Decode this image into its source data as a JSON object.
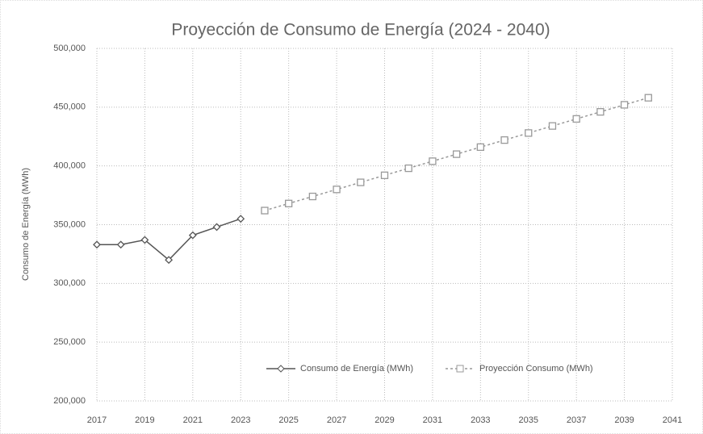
{
  "chart_data": {
    "type": "line",
    "title": "Proyección de Consumo de Energía (2024 - 2040)",
    "y_label": "Consumo de Energía (MWh)",
    "x": [
      2017,
      2018,
      2019,
      2020,
      2021,
      2022,
      2023,
      2024,
      2025,
      2026,
      2027,
      2028,
      2029,
      2030,
      2031,
      2032,
      2033,
      2034,
      2035,
      2036,
      2037,
      2038,
      2039,
      2040
    ],
    "series": [
      {
        "name": "Consumo de Energía (MWh)",
        "color": "#555555",
        "marker": "diamond",
        "values": [
          333000,
          333000,
          337000,
          320000,
          341000,
          348000,
          355000,
          null,
          null,
          null,
          null,
          null,
          null,
          null,
          null,
          null,
          null,
          null,
          null,
          null,
          null,
          null,
          null,
          null
        ]
      },
      {
        "name": "Proyección Consumo (MWh)",
        "color": "#999999",
        "marker": "square",
        "dashed": true,
        "values": [
          null,
          null,
          null,
          null,
          null,
          null,
          null,
          362000,
          368000,
          374000,
          380000,
          386000,
          392000,
          398000,
          404000,
          410000,
          416000,
          422000,
          428000,
          434000,
          440000,
          446000,
          452000,
          458000
        ]
      }
    ],
    "xlim": [
      2017,
      2041
    ],
    "xticks": [
      2017,
      2019,
      2021,
      2023,
      2025,
      2027,
      2029,
      2031,
      2033,
      2035,
      2037,
      2039,
      2041
    ],
    "ylim": [
      200000,
      500000
    ],
    "yticks": [
      {
        "value": 200000,
        "label": "200,000"
      },
      {
        "value": 250000,
        "label": "250,000"
      },
      {
        "value": 300000,
        "label": "300,000"
      },
      {
        "value": 350000,
        "label": "350,000"
      },
      {
        "value": 400000,
        "label": "400,000"
      },
      {
        "value": 450000,
        "label": "450,000"
      },
      {
        "value": 500000,
        "label": "500,000"
      }
    ],
    "grid": true,
    "legend": "lower right"
  }
}
